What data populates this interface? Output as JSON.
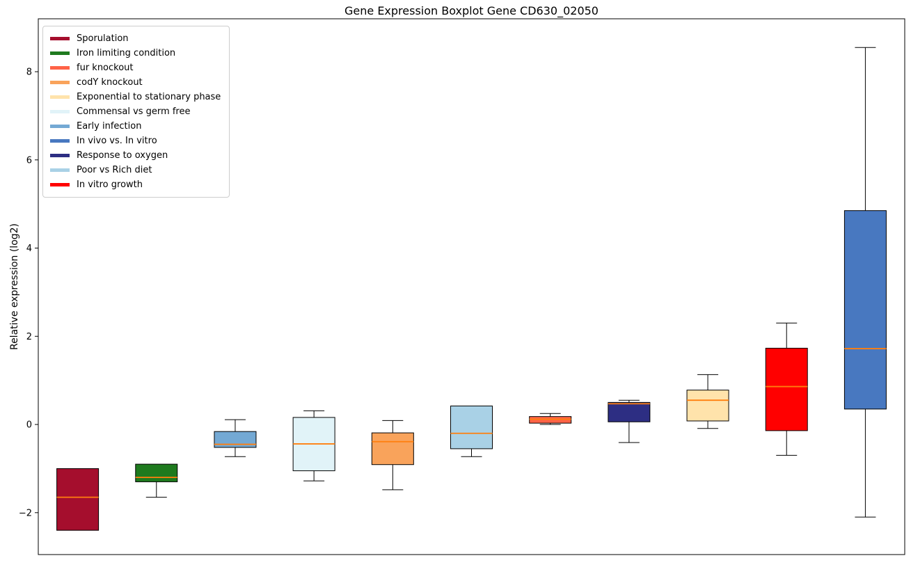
{
  "chart_data": {
    "type": "boxplot",
    "title": "Gene Expression Boxplot Gene CD630_02050",
    "ylabel": "Relative expression (log2)",
    "xlabel": "",
    "ylim": [
      -2.95,
      9.2
    ],
    "yticks": [
      -2,
      0,
      2,
      4,
      6,
      8
    ],
    "grid": false,
    "legend_position": "upper left",
    "median_color": "#ff7f0e",
    "box_edge_color": "#000000",
    "legend": [
      {
        "label": "Sporulation",
        "color": "#a50e2d"
      },
      {
        "label": "Iron limiting condition",
        "color": "#1e7a1e"
      },
      {
        "label": "fur knockout",
        "color": "#ff6347"
      },
      {
        "label": "codY knockout",
        "color": "#f9a35b"
      },
      {
        "label": "Exponential to stationary phase",
        "color": "#ffe3ab"
      },
      {
        "label": "Commensal vs germ free",
        "color": "#e1f3f8"
      },
      {
        "label": "Early infection",
        "color": "#74a9d4"
      },
      {
        "label": "In vivo vs. In vitro",
        "color": "#4878c0"
      },
      {
        "label": "Response to oxygen",
        "color": "#2d2e83"
      },
      {
        "label": "Poor vs Rich diet",
        "color": "#a9d1e6"
      },
      {
        "label": "In vitro growth",
        "color": "#ff0000"
      }
    ],
    "series": [
      {
        "name": "Sporulation",
        "color": "#a50e2d",
        "whislo": -2.4,
        "q1": -2.4,
        "med": -1.65,
        "q3": -1.0,
        "whishi": -1.0
      },
      {
        "name": "Iron limiting condition",
        "color": "#1e7a1e",
        "whislo": -1.65,
        "q1": -1.3,
        "med": -1.2,
        "q3": -0.9,
        "whishi": -0.9
      },
      {
        "name": "Early infection",
        "color": "#74a9d4",
        "whislo": -0.73,
        "q1": -0.52,
        "med": -0.45,
        "q3": -0.16,
        "whishi": 0.11
      },
      {
        "name": "Commensal vs germ free",
        "color": "#e1f3f8",
        "whislo": -1.28,
        "q1": -1.05,
        "med": -0.44,
        "q3": 0.16,
        "whishi": 0.31
      },
      {
        "name": "codY knockout",
        "color": "#f9a35b",
        "whislo": -1.48,
        "q1": -0.91,
        "med": -0.39,
        "q3": -0.19,
        "whishi": 0.09
      },
      {
        "name": "Poor vs Rich diet",
        "color": "#a9d1e6",
        "whislo": -0.73,
        "q1": -0.55,
        "med": -0.2,
        "q3": 0.42,
        "whishi": 0.42
      },
      {
        "name": "fur knockout",
        "color": "#ff6347",
        "whislo": 0.0,
        "q1": 0.03,
        "med": 0.12,
        "q3": 0.18,
        "whishi": 0.25
      },
      {
        "name": "Response to oxygen",
        "color": "#2d2e83",
        "whislo": -0.41,
        "q1": 0.06,
        "med": 0.47,
        "q3": 0.5,
        "whishi": 0.55
      },
      {
        "name": "Exponential to stationary phase",
        "color": "#ffe3ab",
        "whislo": -0.09,
        "q1": 0.08,
        "med": 0.55,
        "q3": 0.78,
        "whishi": 1.13
      },
      {
        "name": "In vitro growth",
        "color": "#ff0000",
        "whislo": -0.7,
        "q1": -0.14,
        "med": 0.86,
        "q3": 1.73,
        "whishi": 2.3
      },
      {
        "name": "In vivo vs. In vitro",
        "color": "#4878c0",
        "whislo": -2.1,
        "q1": 0.35,
        "med": 1.72,
        "q3": 4.85,
        "whishi": 8.55
      }
    ]
  }
}
